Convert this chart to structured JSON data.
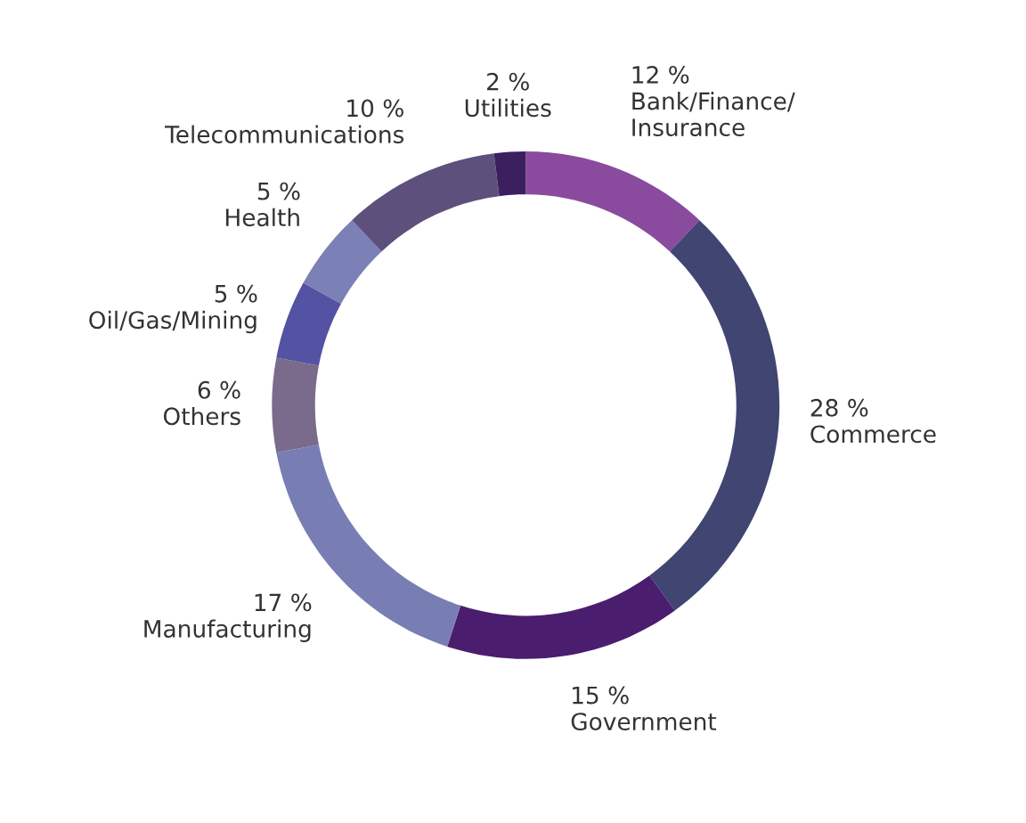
{
  "chart_data": {
    "type": "donut",
    "categories": [
      "Bank/Finance/\nInsurance",
      "Commerce",
      "Government",
      "Manufacturing",
      "Others",
      "Oil/Gas/Mining",
      "Health",
      "Telecommunications",
      "Utilities"
    ],
    "values": [
      12,
      28,
      15,
      17,
      6,
      5,
      5,
      10,
      2
    ],
    "value_labels": [
      "12 %",
      "28 %",
      "15 %",
      "17 %",
      "6 %",
      "5 %",
      "5 %",
      "10 %",
      "2 %"
    ],
    "colors": [
      "#8a4b9e",
      "#414572",
      "#4b1d6e",
      "#787db3",
      "#7a6b8c",
      "#5352a3",
      "#7b80b6",
      "#5e507c",
      "#3b1f5f"
    ]
  }
}
